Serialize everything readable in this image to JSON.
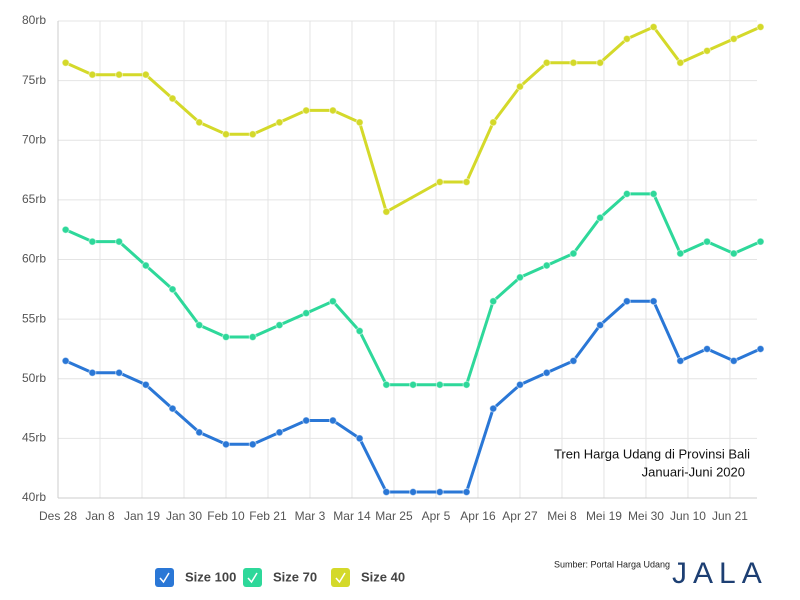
{
  "chart_data": {
    "type": "line",
    "annotation": [
      "Tren Harga Udang di Provinsi Bali",
      "Januari-Juni 2020"
    ],
    "source": "Sumber: Portal Harga Udang",
    "logo": "JALA",
    "xlim": [
      0,
      184
    ],
    "xticks": [
      {
        "value": 0,
        "label": "Des 28"
      },
      {
        "value": 11,
        "label": "Jan 8"
      },
      {
        "value": 22,
        "label": "Jan 19"
      },
      {
        "value": 33,
        "label": "Jan 30"
      },
      {
        "value": 44,
        "label": "Feb 10"
      },
      {
        "value": 55,
        "label": "Feb 21"
      },
      {
        "value": 66,
        "label": "Mar 3"
      },
      {
        "value": 77,
        "label": "Mar 14"
      },
      {
        "value": 88,
        "label": "Mar 25"
      },
      {
        "value": 99,
        "label": "Apr 5"
      },
      {
        "value": 110,
        "label": "Apr 16"
      },
      {
        "value": 121,
        "label": "Apr 27"
      },
      {
        "value": 132,
        "label": "Mei 8"
      },
      {
        "value": 143,
        "label": "Mei 19"
      },
      {
        "value": 154,
        "label": "Mei 30"
      },
      {
        "value": 165,
        "label": "Jun 10"
      },
      {
        "value": 176,
        "label": "Jun 21"
      }
    ],
    "ylim": [
      40,
      80
    ],
    "yticks": [
      {
        "value": 40,
        "label": "40rb"
      },
      {
        "value": 45,
        "label": "45rb"
      },
      {
        "value": 50,
        "label": "50rb"
      },
      {
        "value": 55,
        "label": "55rb"
      },
      {
        "value": 60,
        "label": "60rb"
      },
      {
        "value": 65,
        "label": "65rb"
      },
      {
        "value": 70,
        "label": "70rb"
      },
      {
        "value": 75,
        "label": "75rb"
      },
      {
        "value": 80,
        "label": "80rb"
      }
    ],
    "grid": true,
    "series": [
      {
        "name": "Size 100",
        "color": "#2a77d6",
        "x": [
          2,
          9,
          16,
          23,
          30,
          37,
          44,
          51,
          58,
          65,
          72,
          79,
          86,
          93,
          100,
          107,
          114,
          121,
          128,
          135,
          142,
          149,
          156,
          163,
          170,
          177,
          184
        ],
        "values": [
          51.5,
          50.5,
          50.5,
          49.5,
          47.5,
          45.5,
          44.5,
          44.5,
          45.5,
          46.5,
          46.5,
          45,
          40.5,
          40.5,
          40.5,
          40.5,
          47.5,
          49.5,
          50.5,
          51.5,
          54.5,
          56.5,
          56.5,
          51.5,
          52.5,
          51.5,
          52.5
        ]
      },
      {
        "name": "Size 70",
        "color": "#2ed89a",
        "x": [
          2,
          9,
          16,
          23,
          30,
          37,
          44,
          51,
          58,
          65,
          72,
          79,
          86,
          93,
          100,
          107,
          114,
          121,
          128,
          135,
          142,
          149,
          156,
          163,
          170,
          177,
          184
        ],
        "values": [
          62.5,
          61.5,
          61.5,
          59.5,
          57.5,
          54.5,
          53.5,
          53.5,
          54.5,
          55.5,
          56.5,
          54,
          49.5,
          49.5,
          49.5,
          49.5,
          56.5,
          58.5,
          59.5,
          60.5,
          63.5,
          65.5,
          65.5,
          60.5,
          61.5,
          60.5,
          61.5
        ]
      },
      {
        "name": "Size 40",
        "color": "#d4d92a",
        "x": [
          2,
          9,
          16,
          23,
          30,
          37,
          44,
          51,
          58,
          65,
          72,
          79,
          86,
          100,
          107,
          114,
          121,
          128,
          135,
          142,
          149,
          156,
          163,
          170,
          177,
          184
        ],
        "values": [
          76.5,
          75.5,
          75.5,
          75.5,
          73.5,
          71.5,
          70.5,
          70.5,
          71.5,
          72.5,
          72.5,
          71.5,
          64,
          66.5,
          66.5,
          71.5,
          74.5,
          76.5,
          76.5,
          76.5,
          78.5,
          79.5,
          76.5,
          77.5,
          78.5,
          79.5
        ]
      }
    ]
  }
}
